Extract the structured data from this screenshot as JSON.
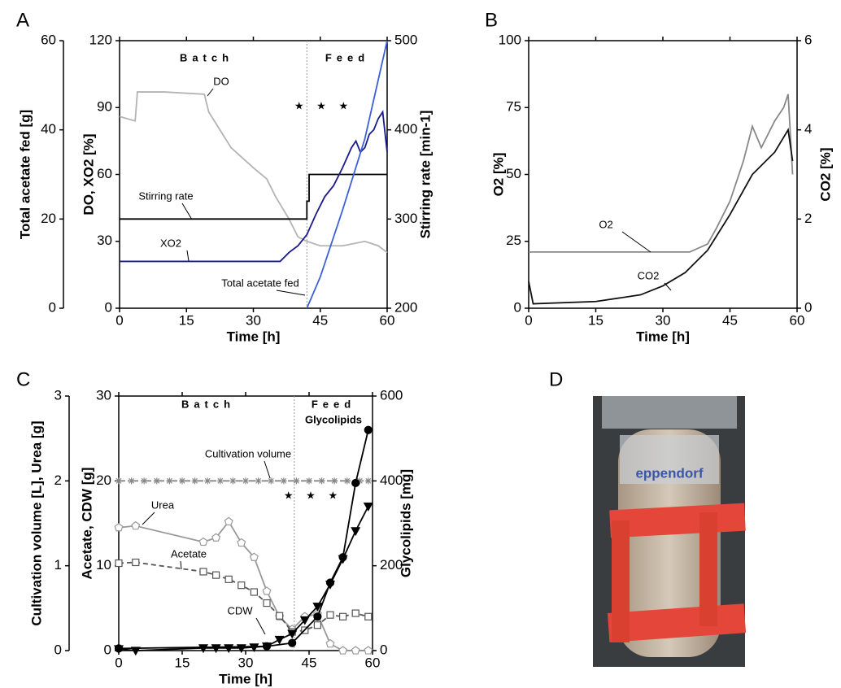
{
  "chart_data": [
    {
      "type": "line",
      "label": "A",
      "xlabel": "Time [h]",
      "ylabel": "DO, XO2 [%]",
      "y2label": "Stirring rate [min-1]",
      "y3label": "Total acetate fed [g]",
      "xlim": [
        0,
        60
      ],
      "xticks": [
        0,
        15,
        30,
        45,
        60
      ],
      "ylim": [
        0,
        120
      ],
      "yticks": [
        0,
        30,
        60,
        90,
        120
      ],
      "y2lim": [
        200,
        500
      ],
      "y2ticks": [
        200,
        300,
        400,
        500
      ],
      "y3lim": [
        0,
        60
      ],
      "y3ticks": [
        0,
        20,
        40,
        60
      ],
      "feed_start": 42,
      "annotations": [
        "Batch",
        "Feed",
        "★ ★ ★"
      ],
      "series": [
        {
          "name": "DO",
          "color": "#b3b3b3",
          "axis": "y",
          "style": "solid",
          "x": [
            0,
            3.5,
            4,
            10,
            19,
            20,
            25,
            30,
            33,
            35,
            38,
            40,
            42,
            45,
            50,
            55,
            58,
            60
          ],
          "values": [
            86,
            84,
            97,
            97,
            96,
            88,
            72,
            63,
            58,
            50,
            40,
            32,
            30,
            28,
            28,
            30,
            28,
            25
          ]
        },
        {
          "name": "Stirring rate",
          "color": "#000000",
          "axis": "y2",
          "style": "solid",
          "x": [
            0,
            42,
            42,
            42.5,
            42.5,
            60
          ],
          "values": [
            300,
            300,
            320,
            320,
            350,
            350
          ]
        },
        {
          "name": "XO2",
          "color": "#1a1a8c",
          "axis": "y",
          "style": "solid",
          "x": [
            0,
            36,
            38,
            40,
            42,
            44,
            46,
            48,
            50,
            52,
            53,
            54,
            55,
            56,
            57,
            58,
            59,
            60
          ],
          "values": [
            21,
            21,
            25,
            28,
            33,
            42,
            50,
            55,
            63,
            72,
            75,
            70,
            72,
            78,
            80,
            85,
            88,
            70
          ]
        },
        {
          "name": "Total acetate fed",
          "color": "#3a5fd9",
          "axis": "y3",
          "style": "solid",
          "x": [
            42,
            45,
            50,
            55,
            60
          ],
          "values": [
            0,
            7,
            22,
            38,
            60
          ]
        }
      ]
    },
    {
      "type": "line",
      "label": "B",
      "xlabel": "Time [h]",
      "ylabel": "O2 [%]",
      "y2label": "CO2 [%]",
      "xlim": [
        0,
        60
      ],
      "xticks": [
        0,
        15,
        30,
        45,
        60
      ],
      "ylim": [
        0,
        100
      ],
      "yticks": [
        0,
        25,
        50,
        75,
        100
      ],
      "y2lim": [
        0,
        6
      ],
      "y2ticks": [
        0,
        2,
        4,
        6
      ],
      "annotations": [],
      "series": [
        {
          "name": "O2",
          "color": "#888888",
          "axis": "y",
          "style": "solid",
          "x": [
            0,
            36,
            40,
            42,
            45,
            48,
            50,
            52,
            55,
            57,
            58,
            59
          ],
          "values": [
            21,
            21,
            24,
            30,
            40,
            55,
            68,
            60,
            70,
            75,
            80,
            50
          ]
        },
        {
          "name": "CO2",
          "color": "#111111",
          "axis": "y2",
          "style": "solid",
          "x": [
            0,
            1,
            15,
            25,
            30,
            35,
            40,
            45,
            50,
            55,
            58,
            59
          ],
          "values": [
            0.6,
            0.1,
            0.15,
            0.3,
            0.5,
            0.8,
            1.3,
            2.1,
            3.0,
            3.5,
            4.0,
            3.3
          ]
        }
      ]
    },
    {
      "type": "line",
      "label": "C",
      "xlabel": "Time [h]",
      "ylabel": "Acetate, CDW [g]",
      "y2label": "Glycolipids [mg]",
      "y3label": "Cultivation volume [L], Urea [g]",
      "xlim": [
        0,
        60
      ],
      "xticks": [
        0,
        15,
        30,
        45,
        60
      ],
      "ylim": [
        0,
        30
      ],
      "yticks": [
        0,
        10,
        20,
        30
      ],
      "y2lim": [
        0,
        600
      ],
      "y2ticks": [
        0,
        200,
        400,
        600
      ],
      "y3lim": [
        0,
        3
      ],
      "y3ticks": [
        0,
        1,
        2,
        3
      ],
      "feed_start": 41.5,
      "annotations": [
        "Batch",
        "Feed",
        "★ ★ ★"
      ],
      "series": [
        {
          "name": "Cultivation volume",
          "color": "#888888",
          "axis": "y3",
          "style": "dashdot",
          "marker": "asterisk",
          "x": [
            0,
            3,
            6,
            9,
            12,
            15,
            18,
            21,
            24,
            27,
            30,
            33,
            36,
            39,
            42,
            45,
            48,
            51,
            54,
            57,
            59
          ],
          "values": [
            2,
            2,
            2,
            2,
            2,
            2,
            2,
            2,
            2,
            2,
            2,
            2,
            2,
            2,
            2,
            2,
            2,
            2,
            2,
            2,
            2
          ]
        },
        {
          "name": "Urea",
          "color": "#999999",
          "axis": "y3",
          "style": "solid",
          "marker": "pentagon",
          "x": [
            0,
            4,
            20,
            23,
            26,
            29,
            32,
            35,
            38,
            41,
            44,
            47,
            50,
            53,
            56,
            59
          ],
          "values": [
            1.45,
            1.47,
            1.28,
            1.33,
            1.52,
            1.27,
            1.1,
            0.7,
            0.4,
            0.25,
            0.4,
            0.43,
            0.08,
            0,
            0,
            0
          ]
        },
        {
          "name": "Acetate",
          "color": "#555555",
          "axis": "y",
          "style": "dashed",
          "marker": "square",
          "x": [
            0,
            4,
            20,
            23,
            26,
            29,
            32,
            35,
            38,
            41,
            44,
            47,
            50,
            53,
            56,
            59
          ],
          "values": [
            10.3,
            10.4,
            9.3,
            8.9,
            8.4,
            7.7,
            6.9,
            5.6,
            4.1,
            2.2,
            2.4,
            3.0,
            4.2,
            4.0,
            4.4,
            4.0
          ]
        },
        {
          "name": "CDW",
          "color": "#000000",
          "axis": "y",
          "style": "solid",
          "marker": "triangle",
          "x": [
            0,
            4,
            20,
            23,
            26,
            29,
            32,
            35,
            38,
            41,
            44,
            47,
            50,
            53,
            56,
            59
          ],
          "values": [
            0.2,
            0,
            0.3,
            0.3,
            0.3,
            0.3,
            0.4,
            0.5,
            1.3,
            2.0,
            3.6,
            5.2,
            7.8,
            10.8,
            14.1,
            17.0
          ]
        },
        {
          "name": "Glycolipids",
          "color": "#000000",
          "axis": "y2",
          "style": "solid",
          "marker": "circle",
          "x": [
            0,
            35,
            41,
            47,
            50,
            53,
            56,
            59
          ],
          "values": [
            5,
            10,
            18,
            80,
            160,
            220,
            395,
            520
          ]
        }
      ]
    }
  ],
  "photo": {
    "label": "D",
    "brand": "eppendorf"
  }
}
